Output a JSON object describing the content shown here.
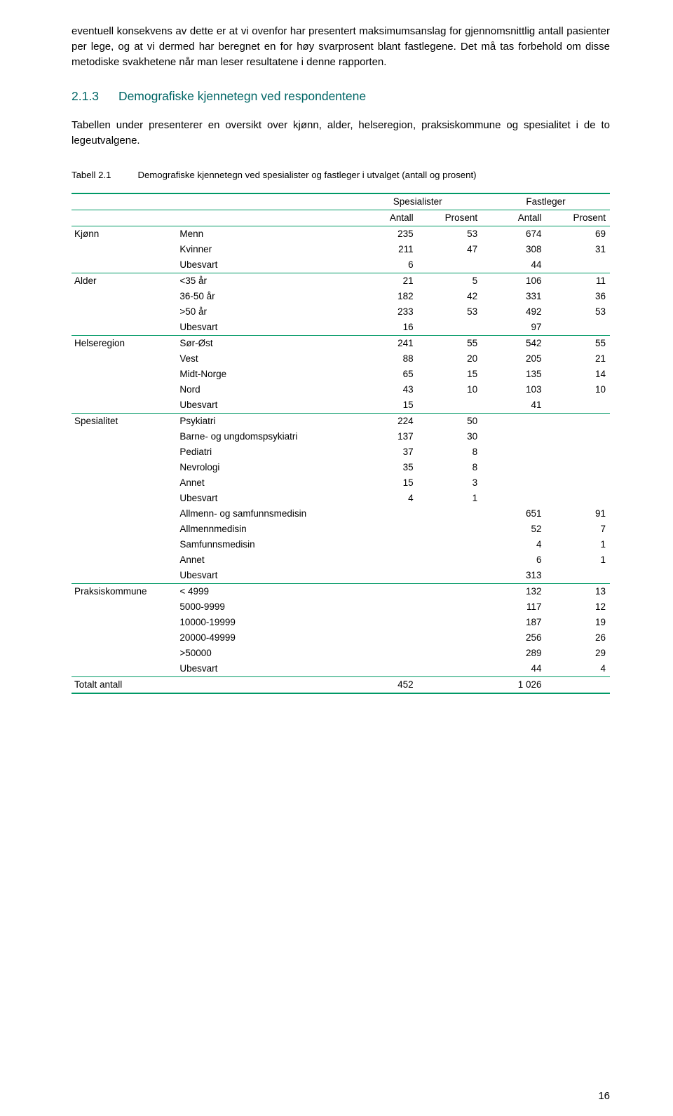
{
  "intro_para": "eventuell konsekvens av dette er at vi ovenfor har presentert maksimumsanslag for gjennomsnittlig antall pasienter per lege, og at vi dermed har beregnet en for høy svarprosent blant fastlegene. Det må tas forbehold om disse metodiske svakhetene når man leser resultatene i denne rapporten.",
  "section_num": "2.1.3",
  "section_title": "Demografiske kjennetegn ved respondentene",
  "section_para": "Tabellen under presenterer en oversikt over kjønn, alder, helseregion, praksiskommune og spesialitet i de to legeutvalgene.",
  "table_num": "Tabell 2.1",
  "table_caption": "Demografiske kjennetegn ved spesialister og fastleger i utvalget (antall og prosent)",
  "group1": "Spesialister",
  "group2": "Fastleger",
  "col_a": "Antall",
  "col_p": "Prosent",
  "rows": [
    {
      "cat": "Kjønn",
      "lbl": "Menn",
      "a1": "235",
      "p1": "53",
      "a2": "674",
      "p2": "69",
      "first": true
    },
    {
      "cat": "",
      "lbl": "Kvinner",
      "a1": "211",
      "p1": "47",
      "a2": "308",
      "p2": "31"
    },
    {
      "cat": "",
      "lbl": "Ubesvart",
      "a1": "6",
      "p1": "",
      "a2": "44",
      "p2": ""
    },
    {
      "cat": "Alder",
      "lbl": "<35 år",
      "a1": "21",
      "p1": "5",
      "a2": "106",
      "p2": "11",
      "first": true
    },
    {
      "cat": "",
      "lbl": "36-50 år",
      "a1": "182",
      "p1": "42",
      "a2": "331",
      "p2": "36"
    },
    {
      "cat": "",
      "lbl": ">50 år",
      "a1": "233",
      "p1": "53",
      "a2": "492",
      "p2": "53"
    },
    {
      "cat": "",
      "lbl": "Ubesvart",
      "a1": "16",
      "p1": "",
      "a2": "97",
      "p2": ""
    },
    {
      "cat": "Helseregion",
      "lbl": "Sør-Øst",
      "a1": "241",
      "p1": "55",
      "a2": "542",
      "p2": "55",
      "first": true
    },
    {
      "cat": "",
      "lbl": "Vest",
      "a1": "88",
      "p1": "20",
      "a2": "205",
      "p2": "21"
    },
    {
      "cat": "",
      "lbl": "Midt-Norge",
      "a1": "65",
      "p1": "15",
      "a2": "135",
      "p2": "14"
    },
    {
      "cat": "",
      "lbl": "Nord",
      "a1": "43",
      "p1": "10",
      "a2": "103",
      "p2": "10"
    },
    {
      "cat": "",
      "lbl": "Ubesvart",
      "a1": "15",
      "p1": "",
      "a2": "41",
      "p2": ""
    },
    {
      "cat": "Spesialitet",
      "lbl": "Psykiatri",
      "a1": "224",
      "p1": "50",
      "a2": "",
      "p2": "",
      "first": true
    },
    {
      "cat": "",
      "lbl": "Barne- og ungdomspsykiatri",
      "a1": "137",
      "p1": "30",
      "a2": "",
      "p2": ""
    },
    {
      "cat": "",
      "lbl": "Pediatri",
      "a1": "37",
      "p1": "8",
      "a2": "",
      "p2": ""
    },
    {
      "cat": "",
      "lbl": "Nevrologi",
      "a1": "35",
      "p1": "8",
      "a2": "",
      "p2": ""
    },
    {
      "cat": "",
      "lbl": "Annet",
      "a1": "15",
      "p1": "3",
      "a2": "",
      "p2": ""
    },
    {
      "cat": "",
      "lbl": "Ubesvart",
      "a1": "4",
      "p1": "1",
      "a2": "",
      "p2": ""
    },
    {
      "cat": "",
      "lbl": "Allmenn- og samfunnsmedisin",
      "a1": "",
      "p1": "",
      "a2": "651",
      "p2": "91"
    },
    {
      "cat": "",
      "lbl": "Allmennmedisin",
      "a1": "",
      "p1": "",
      "a2": "52",
      "p2": "7"
    },
    {
      "cat": "",
      "lbl": "Samfunnsmedisin",
      "a1": "",
      "p1": "",
      "a2": "4",
      "p2": "1"
    },
    {
      "cat": "",
      "lbl": "Annet",
      "a1": "",
      "p1": "",
      "a2": "6",
      "p2": "1"
    },
    {
      "cat": "",
      "lbl": "Ubesvart",
      "a1": "",
      "p1": "",
      "a2": "313",
      "p2": ""
    },
    {
      "cat": "Praksiskommune",
      "lbl": "< 4999",
      "a1": "",
      "p1": "",
      "a2": "132",
      "p2": "13",
      "first": true
    },
    {
      "cat": "",
      "lbl": "5000-9999",
      "a1": "",
      "p1": "",
      "a2": "117",
      "p2": "12"
    },
    {
      "cat": "",
      "lbl": "10000-19999",
      "a1": "",
      "p1": "",
      "a2": "187",
      "p2": "19"
    },
    {
      "cat": "",
      "lbl": "20000-49999",
      "a1": "",
      "p1": "",
      "a2": "256",
      "p2": "26"
    },
    {
      "cat": "",
      "lbl": ">50000",
      "a1": "",
      "p1": "",
      "a2": "289",
      "p2": "29"
    },
    {
      "cat": "",
      "lbl": "Ubesvart",
      "a1": "",
      "p1": "",
      "a2": "44",
      "p2": "4"
    }
  ],
  "total_label": "Totalt antall",
  "total_a1": "452",
  "total_a2": "1 026",
  "page_no": "16"
}
